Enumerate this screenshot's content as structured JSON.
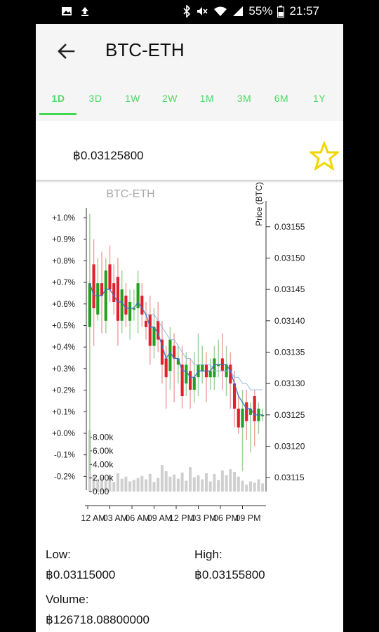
{
  "status_bar": {
    "battery": "55%",
    "time": "21:57"
  },
  "app_bar": {
    "title": "BTC-ETH"
  },
  "tabs": [
    {
      "label": "1D",
      "active": true
    },
    {
      "label": "3D"
    },
    {
      "label": "1W"
    },
    {
      "label": "2W"
    },
    {
      "label": "1M"
    },
    {
      "label": "3M"
    },
    {
      "label": "6M"
    },
    {
      "label": "1Y"
    }
  ],
  "price": {
    "value": "฿0.03125800"
  },
  "favorite_icon": "star-outline-icon",
  "colors": {
    "accent": "#4cd964",
    "star": "#f2d600",
    "up": "#22a020",
    "down": "#e0202a",
    "volume": "#cfcfcf",
    "ma": "#3d6fc4"
  },
  "chart_data": {
    "type": "candlestick",
    "title": "BTC-ETH",
    "right_axis_label": "Price (BTC)",
    "price_ticks": [
      "0.03155",
      "0.03150",
      "0.03145",
      "0.03140",
      "0.03135",
      "0.03130",
      "0.03125",
      "0.03120",
      "0.03115"
    ],
    "price_range": [
      0.03113,
      0.03158
    ],
    "percent_ticks": [
      "+1.0%",
      "+0.9%",
      "+0.8%",
      "+0.7%",
      "+0.6%",
      "+0.5%",
      "+0.4%",
      "+0.3%",
      "+0.2%",
      "+0.1%",
      "+0.0%",
      "-0.1%",
      "-0.2%"
    ],
    "volume_ticks": [
      "8.00k",
      "6.00k",
      "4.00k",
      "2.00k",
      "0.00"
    ],
    "volume_range": [
      0,
      9000
    ],
    "time_ticks": [
      "12 AM",
      "03 AM",
      "06 AM",
      "09 AM",
      "12 PM",
      "03 PM",
      "06 PM",
      "09 PM"
    ],
    "candles": [
      {
        "o": 0.03139,
        "c": 0.03146,
        "h": 0.03157,
        "l": 0.03116,
        "v": 9000
      },
      {
        "o": 0.03149,
        "c": 0.03142,
        "h": 0.03153,
        "l": 0.03136,
        "v": 2500
      },
      {
        "o": 0.03141,
        "c": 0.03146,
        "h": 0.0315,
        "l": 0.0314,
        "v": 1800
      },
      {
        "o": 0.03146,
        "c": 0.03144,
        "h": 0.03151,
        "l": 0.03138,
        "v": 2100
      },
      {
        "o": 0.0314,
        "c": 0.03148,
        "h": 0.0315,
        "l": 0.03138,
        "v": 1600
      },
      {
        "o": 0.03149,
        "c": 0.03145,
        "h": 0.03152,
        "l": 0.03143,
        "v": 2400
      },
      {
        "o": 0.03146,
        "c": 0.03143,
        "h": 0.03149,
        "l": 0.03141,
        "v": 1400
      },
      {
        "o": 0.03147,
        "c": 0.0314,
        "h": 0.0315,
        "l": 0.03136,
        "v": 2700
      },
      {
        "o": 0.0314,
        "c": 0.03145,
        "h": 0.03148,
        "l": 0.03138,
        "v": 1900
      },
      {
        "o": 0.03144,
        "c": 0.03141,
        "h": 0.03146,
        "l": 0.03139,
        "v": 2200
      },
      {
        "o": 0.0314,
        "c": 0.03143,
        "h": 0.03145,
        "l": 0.03137,
        "v": 1500
      },
      {
        "o": 0.03142,
        "c": 0.03142,
        "h": 0.03145,
        "l": 0.0314,
        "v": 1700
      },
      {
        "o": 0.03142,
        "c": 0.03146,
        "h": 0.03148,
        "l": 0.03138,
        "v": 2000
      },
      {
        "o": 0.03144,
        "c": 0.03141,
        "h": 0.03146,
        "l": 0.03139,
        "v": 2300
      },
      {
        "o": 0.0314,
        "c": 0.03139,
        "h": 0.03143,
        "l": 0.03137,
        "v": 1800
      },
      {
        "o": 0.03141,
        "c": 0.03136,
        "h": 0.03144,
        "l": 0.03133,
        "v": 2600
      },
      {
        "o": 0.03136,
        "c": 0.03139,
        "h": 0.03142,
        "l": 0.03134,
        "v": 1400
      },
      {
        "o": 0.0314,
        "c": 0.03137,
        "h": 0.03143,
        "l": 0.03135,
        "v": 2000
      },
      {
        "o": 0.03137,
        "c": 0.03133,
        "h": 0.0314,
        "l": 0.0313,
        "v": 3900
      },
      {
        "o": 0.03134,
        "c": 0.03131,
        "h": 0.03136,
        "l": 0.03126,
        "v": 3000
      },
      {
        "o": 0.03132,
        "c": 0.03137,
        "h": 0.03139,
        "l": 0.03129,
        "v": 2200
      },
      {
        "o": 0.03136,
        "c": 0.03134,
        "h": 0.03138,
        "l": 0.03127,
        "v": 2500
      },
      {
        "o": 0.03133,
        "c": 0.03134,
        "h": 0.03136,
        "l": 0.0313,
        "v": 1900
      },
      {
        "o": 0.03133,
        "c": 0.03128,
        "h": 0.03136,
        "l": 0.03126,
        "v": 2800
      },
      {
        "o": 0.0313,
        "c": 0.03133,
        "h": 0.03135,
        "l": 0.03128,
        "v": 1600
      },
      {
        "o": 0.03132,
        "c": 0.03129,
        "h": 0.03134,
        "l": 0.03126,
        "v": 3600
      },
      {
        "o": 0.03129,
        "c": 0.03131,
        "h": 0.03135,
        "l": 0.03127,
        "v": 2100
      },
      {
        "o": 0.03131,
        "c": 0.03133,
        "h": 0.03138,
        "l": 0.03128,
        "v": 2400
      },
      {
        "o": 0.03132,
        "c": 0.03133,
        "h": 0.03136,
        "l": 0.0313,
        "v": 1800
      },
      {
        "o": 0.03133,
        "c": 0.03131,
        "h": 0.03135,
        "l": 0.03127,
        "v": 2700
      },
      {
        "o": 0.03131,
        "c": 0.03132,
        "h": 0.03134,
        "l": 0.03129,
        "v": 1500
      },
      {
        "o": 0.03131,
        "c": 0.03134,
        "h": 0.03136,
        "l": 0.03129,
        "v": 2600
      },
      {
        "o": 0.03133,
        "c": 0.03133,
        "h": 0.03137,
        "l": 0.03131,
        "v": 1700
      },
      {
        "o": 0.03134,
        "c": 0.03132,
        "h": 0.03138,
        "l": 0.03129,
        "v": 3100
      },
      {
        "o": 0.03131,
        "c": 0.03133,
        "h": 0.03136,
        "l": 0.03128,
        "v": 2400
      },
      {
        "o": 0.03133,
        "c": 0.0313,
        "h": 0.03135,
        "l": 0.03126,
        "v": 3300
      },
      {
        "o": 0.0313,
        "c": 0.03126,
        "h": 0.03132,
        "l": 0.03123,
        "v": 2900
      },
      {
        "o": 0.03126,
        "c": 0.03123,
        "h": 0.03128,
        "l": 0.03122,
        "v": 2200
      },
      {
        "o": 0.03123,
        "c": 0.03126,
        "h": 0.03129,
        "l": 0.03116,
        "v": 1600
      },
      {
        "o": 0.03127,
        "c": 0.03124,
        "h": 0.03129,
        "l": 0.03121,
        "v": 1000
      },
      {
        "o": 0.03125,
        "c": 0.03126,
        "h": 0.03127,
        "l": 0.03119,
        "v": 1500
      },
      {
        "o": 0.03128,
        "c": 0.03124,
        "h": 0.03129,
        "l": 0.0312,
        "v": 1300
      },
      {
        "o": 0.03124,
        "c": 0.03126,
        "h": 0.03127,
        "l": 0.03122,
        "v": 1800
      },
      {
        "o": 0.03125,
        "c": 0.03125,
        "h": 0.03126,
        "l": 0.03124,
        "v": 1200
      }
    ],
    "ma_fast": [
      0.03146,
      0.03144,
      0.03144,
      0.03144,
      0.03145,
      0.03145,
      0.03144,
      0.03143,
      0.03143,
      0.03142,
      0.03142,
      0.03142,
      0.03143,
      0.03142,
      0.03141,
      0.03139,
      0.03139,
      0.03138,
      0.03136,
      0.03134,
      0.03135,
      0.03134,
      0.03134,
      0.03132,
      0.03132,
      0.03131,
      0.03131,
      0.03132,
      0.03132,
      0.03132,
      0.03132,
      0.03133,
      0.03133,
      0.03133,
      0.03133,
      0.03132,
      0.0313,
      0.03128,
      0.03127,
      0.03126,
      0.03126,
      0.03125,
      0.03125,
      0.03125
    ],
    "ma_slow": [
      null,
      null,
      null,
      null,
      null,
      null,
      null,
      null,
      null,
      null,
      null,
      null,
      null,
      null,
      0.03141,
      0.03141,
      0.03141,
      0.0314,
      0.03139,
      0.03138,
      0.03137,
      0.03137,
      0.03136,
      0.03135,
      0.03134,
      0.03134,
      0.03133,
      0.03133,
      0.03133,
      0.03133,
      0.03133,
      0.03132,
      0.03132,
      0.03132,
      0.03132,
      0.03132,
      0.03131,
      0.03131,
      0.0313,
      0.0313,
      0.03129,
      0.03129,
      0.03129,
      0.03129
    ]
  },
  "stats": {
    "low_label": "Low:",
    "low_value": "฿0.03115000",
    "high_label": "High:",
    "high_value": "฿0.03155800",
    "volume_label": "Volume:",
    "volume_value": "฿126718.08800000"
  }
}
